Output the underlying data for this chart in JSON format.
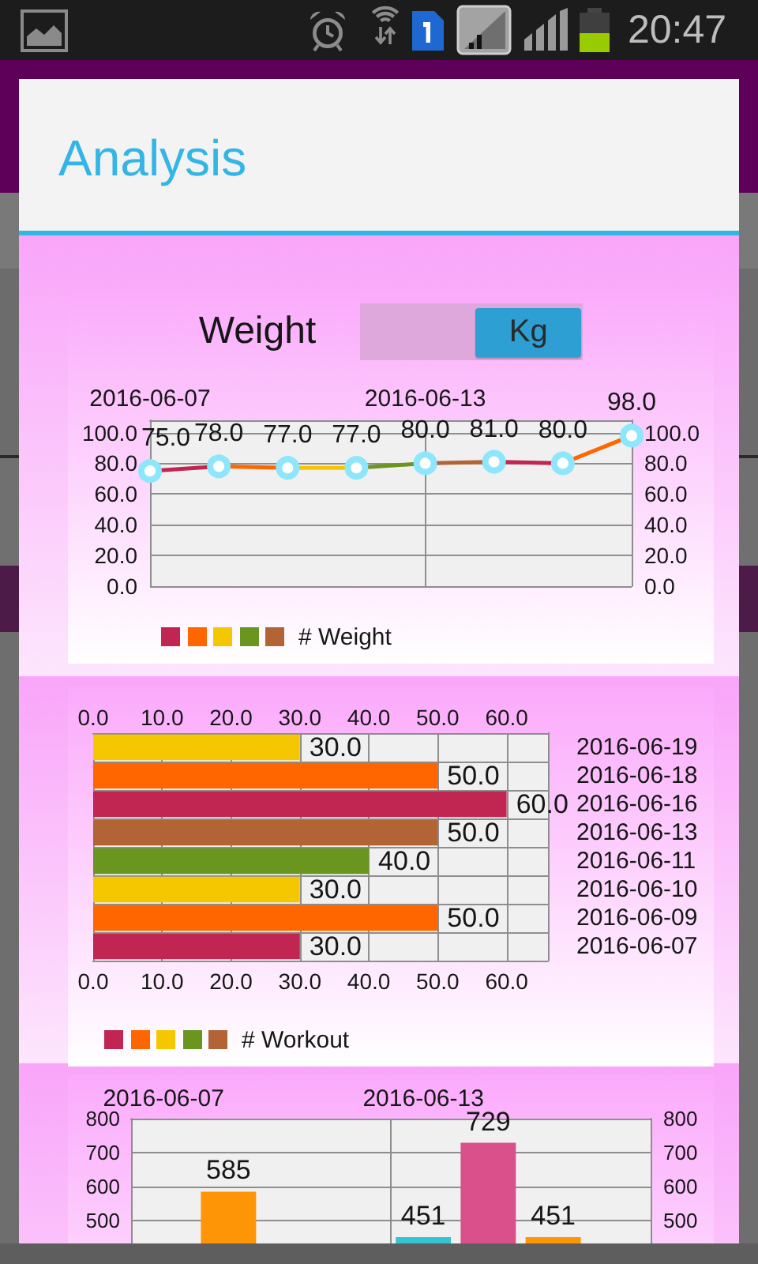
{
  "chart_data": [
    {
      "type": "other",
      "title": "Analysis",
      "annotations": [
        "20:47"
      ]
    },
    {
      "type": "line",
      "title": "Weight",
      "subtitle": "Kg",
      "categories": [
        "2016-06-07",
        null,
        null,
        null,
        "2016-06-13",
        null,
        null,
        null
      ],
      "series": [
        {
          "name": "# Weight",
          "colors": [
            "#c12552",
            "#ff6600",
            "#f5c700",
            "#6a961f",
            "#b36435",
            "#c12552",
            "#ff6600",
            "#f5c700"
          ],
          "values": [
            75,
            78,
            77,
            77,
            80,
            81,
            80,
            98
          ],
          "value_labels": [
            "75.0",
            "78.0",
            "77.0",
            "77.0",
            "80.0",
            "81.0",
            "80.0",
            "98.0"
          ]
        }
      ],
      "ylim": [
        0,
        108
      ],
      "yticks": [
        {
          "value": 0,
          "label": "0.0"
        },
        {
          "value": 20,
          "label": "20.0"
        },
        {
          "value": 40,
          "label": "40.0"
        },
        {
          "value": 60,
          "label": "60.0"
        },
        {
          "value": 80,
          "label": "80.0"
        },
        {
          "value": 100,
          "label": "100.0"
        }
      ],
      "y2lim": [
        0,
        108
      ],
      "y2ticks": [
        {
          "value": 0,
          "label": "0.0"
        },
        {
          "value": 20,
          "label": "20.0"
        },
        {
          "value": 40,
          "label": "40.0"
        },
        {
          "value": 60,
          "label": "60.0"
        },
        {
          "value": 80,
          "label": "80.0"
        },
        {
          "value": 100,
          "label": "100.0"
        }
      ],
      "grid": true,
      "legend": "bottom left",
      "marker": "circle",
      "line_style": "solid"
    },
    {
      "type": "bar",
      "orientation": "horizontal",
      "categories": [
        "2016-06-19",
        "2016-06-18",
        "2016-06-16",
        "2016-06-13",
        "2016-06-11",
        "2016-06-10",
        "2016-06-09",
        "2016-06-07"
      ],
      "series": [
        {
          "name": "# Workout",
          "colors": [
            "#f5c700",
            "#ff6600",
            "#c12552",
            "#b36435",
            "#6a961f",
            "#f5c700",
            "#ff6600",
            "#c12552"
          ],
          "values": [
            30,
            50,
            60,
            50,
            40,
            30,
            50,
            30
          ],
          "value_labels": [
            "30.0",
            "50.0",
            "60.0",
            "50.0",
            "40.0",
            "30.0",
            "50.0",
            "30.0"
          ]
        }
      ],
      "xlim": [
        0,
        66
      ],
      "xticks": [
        {
          "value": 0,
          "label": "0.0"
        },
        {
          "value": 10,
          "label": "10.0"
        },
        {
          "value": 20,
          "label": "20.0"
        },
        {
          "value": 30,
          "label": "30.0"
        },
        {
          "value": 40,
          "label": "40.0"
        },
        {
          "value": 50,
          "label": "50.0"
        },
        {
          "value": 60,
          "label": "60.0"
        }
      ],
      "x2lim": [
        0,
        66
      ],
      "x2ticks": [
        {
          "value": 0,
          "label": "0.0"
        },
        {
          "value": 10,
          "label": "10.0"
        },
        {
          "value": 20,
          "label": "20.0"
        },
        {
          "value": 30,
          "label": "30.0"
        },
        {
          "value": 40,
          "label": "40.0"
        },
        {
          "value": 50,
          "label": "50.0"
        },
        {
          "value": 60,
          "label": "60.0"
        }
      ],
      "grid": true,
      "legend": "bottom left"
    },
    {
      "type": "bar",
      "categories": [
        "2016-06-07",
        null,
        null,
        null,
        "2016-06-13",
        null,
        null,
        null
      ],
      "series": [
        {
          "colors": [
            null,
            "#fe9507",
            null,
            null,
            "#35c2d1",
            "#d9508a",
            "#fe9507",
            null
          ],
          "values": [
            null,
            585,
            null,
            null,
            451,
            729,
            451,
            null
          ],
          "value_labels": [
            null,
            "585",
            null,
            null,
            "451",
            "729",
            "451",
            null
          ]
        }
      ],
      "ylim": [
        0,
        800
      ],
      "yticks": [
        500,
        600,
        700,
        800
      ],
      "y2lim": [
        0,
        800
      ],
      "y2ticks": [
        500,
        600,
        700,
        800
      ],
      "grid": true
    }
  ]
}
